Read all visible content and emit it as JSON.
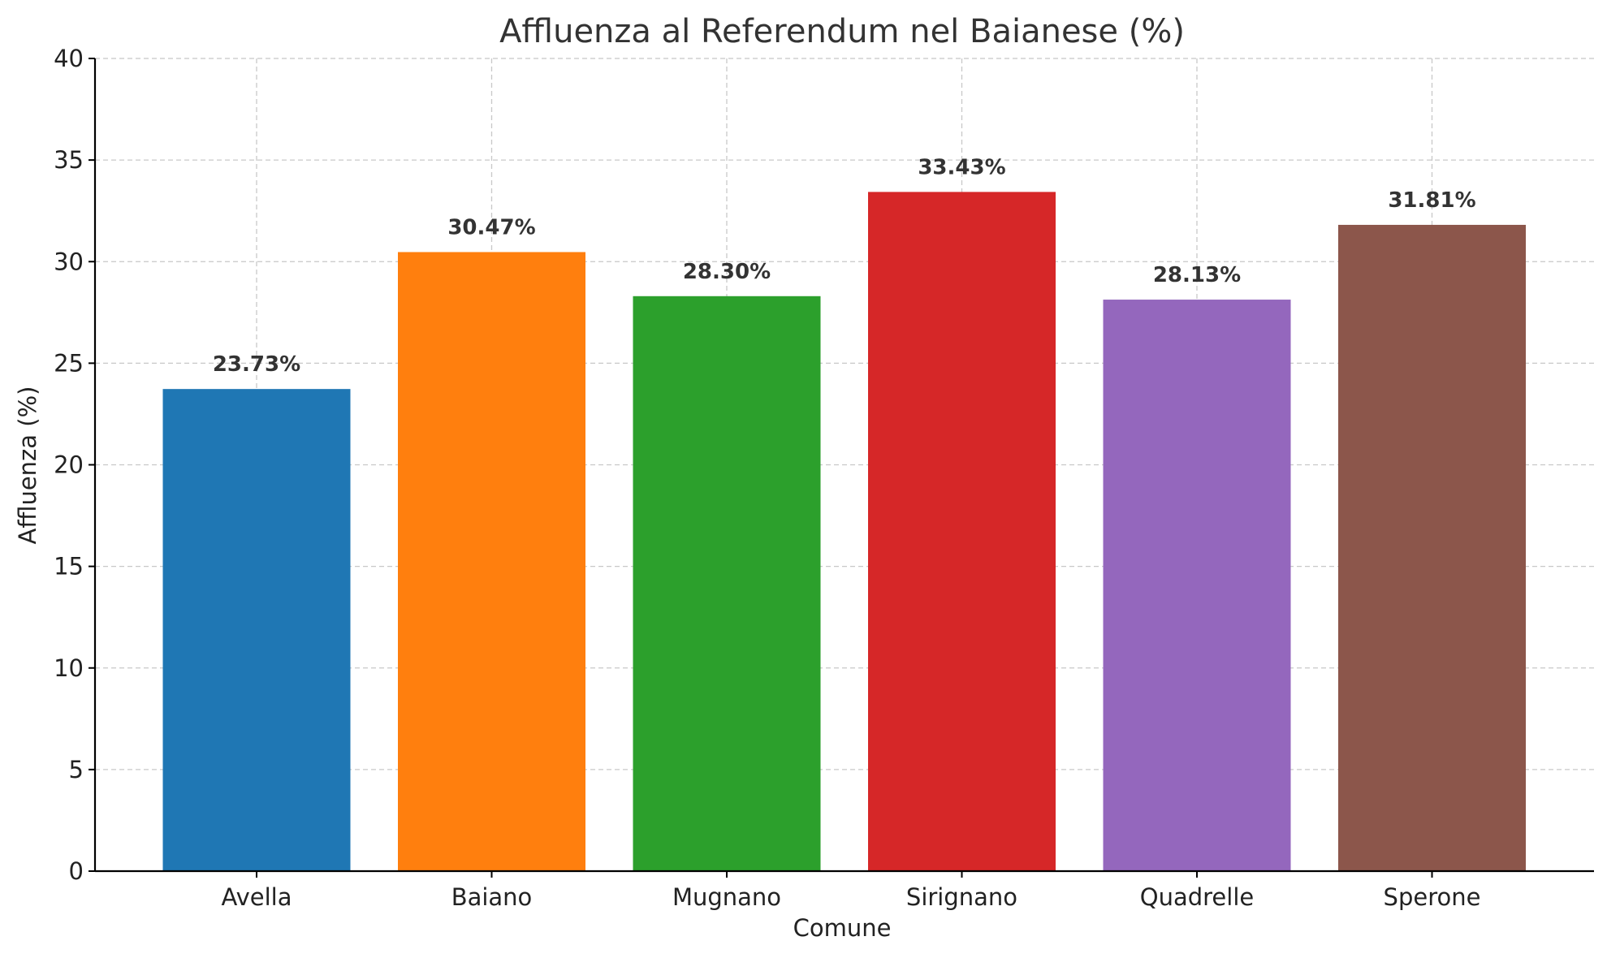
{
  "chart_data": {
    "type": "bar",
    "title": "Affluenza al Referendum nel Baianese (%)",
    "xlabel": "Comune",
    "ylabel": "Affluenza (%)",
    "categories": [
      "Avella",
      "Baiano",
      "Mugnano",
      "Sirignano",
      "Quadrelle",
      "Sperone"
    ],
    "values": [
      23.73,
      30.47,
      28.3,
      33.43,
      28.13,
      31.81
    ],
    "value_labels": [
      "23.73%",
      "30.47%",
      "28.30%",
      "33.43%",
      "28.13%",
      "31.81%"
    ],
    "colors": [
      "#1f77b4",
      "#ff7f0e",
      "#2ca02c",
      "#d62728",
      "#9467bd",
      "#8c564b"
    ],
    "ylim": [
      0,
      40
    ],
    "yticks": [
      0,
      5,
      10,
      15,
      20,
      25,
      30,
      35,
      40
    ],
    "ytick_labels": [
      "0",
      "5",
      "10",
      "15",
      "20",
      "25",
      "30",
      "35",
      "40"
    ],
    "grid": true,
    "legend": false
  }
}
